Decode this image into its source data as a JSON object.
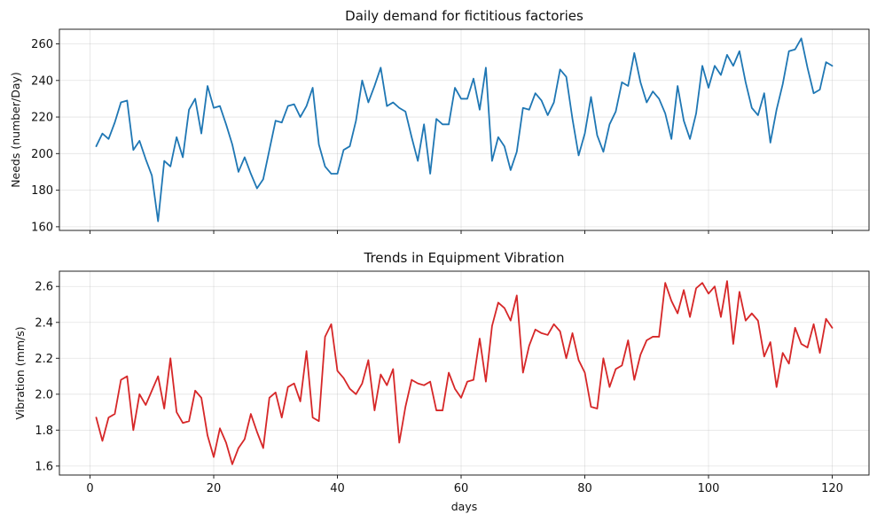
{
  "chart_data": [
    {
      "type": "line",
      "title": "Daily demand for fictitious factories",
      "xlabel": "",
      "ylabel": "Needs (number/Day)",
      "xlim": [
        -4.95,
        125.95
      ],
      "ylim": [
        158,
        268
      ],
      "xticks": [
        0,
        20,
        40,
        60,
        80,
        100,
        120
      ],
      "show_xtick_labels": false,
      "yticks": [
        160,
        180,
        200,
        220,
        240,
        260
      ],
      "grid": true,
      "color": "#1f77b4",
      "x_start": 1,
      "values": [
        204,
        211,
        208,
        217,
        228,
        229,
        202,
        207,
        197,
        188,
        163,
        196,
        193,
        209,
        198,
        224,
        230,
        211,
        237,
        225,
        226,
        216,
        205,
        190,
        198,
        189,
        181,
        186,
        202,
        218,
        217,
        226,
        227,
        220,
        226,
        236,
        205,
        193,
        189,
        189,
        202,
        204,
        218,
        240,
        228,
        237,
        247,
        226,
        228,
        225,
        223,
        209,
        196,
        216,
        189,
        219,
        216,
        216,
        236,
        230,
        230,
        241,
        224,
        247,
        196,
        209,
        204,
        191,
        201,
        225,
        224,
        233,
        229,
        221,
        228,
        246,
        242,
        219,
        199,
        211,
        231,
        210,
        201,
        216,
        223,
        239,
        237,
        255,
        239,
        228,
        234,
        230,
        222,
        208,
        237,
        218,
        208,
        222,
        248,
        236,
        248,
        243,
        254,
        248,
        256,
        239,
        225,
        221,
        233,
        206,
        224,
        238,
        256,
        257,
        263,
        247,
        233,
        235,
        250,
        248
      ]
    },
    {
      "type": "line",
      "title": "Trends in Equipment Vibration",
      "xlabel": "days",
      "ylabel": "Vibration (mm/s)",
      "xlim": [
        -4.95,
        125.95
      ],
      "ylim": [
        1.55,
        2.685
      ],
      "xticks": [
        0,
        20,
        40,
        60,
        80,
        100,
        120
      ],
      "show_xtick_labels": true,
      "yticks": [
        1.6,
        1.8,
        2.0,
        2.2,
        2.4,
        2.6
      ],
      "grid": true,
      "color": "#d62728",
      "x_start": 1,
      "values": [
        1.87,
        1.74,
        1.87,
        1.89,
        2.08,
        2.1,
        1.8,
        2.0,
        1.94,
        2.02,
        2.1,
        1.92,
        2.2,
        1.9,
        1.84,
        1.85,
        2.02,
        1.98,
        1.77,
        1.65,
        1.81,
        1.73,
        1.61,
        1.7,
        1.75,
        1.89,
        1.79,
        1.7,
        1.98,
        2.01,
        1.87,
        2.04,
        2.06,
        1.96,
        2.24,
        1.87,
        1.85,
        2.32,
        2.39,
        2.13,
        2.09,
        2.03,
        2.0,
        2.06,
        2.19,
        1.91,
        2.11,
        2.05,
        2.14,
        1.73,
        1.93,
        2.08,
        2.06,
        2.05,
        2.07,
        1.91,
        1.91,
        2.12,
        2.03,
        1.98,
        2.07,
        2.08,
        2.31,
        2.07,
        2.38,
        2.51,
        2.48,
        2.41,
        2.55,
        2.12,
        2.27,
        2.36,
        2.34,
        2.33,
        2.39,
        2.35,
        2.2,
        2.34,
        2.19,
        2.12,
        1.93,
        1.92,
        2.2,
        2.04,
        2.14,
        2.16,
        2.3,
        2.08,
        2.22,
        2.3,
        2.32,
        2.32,
        2.62,
        2.52,
        2.45,
        2.58,
        2.43,
        2.59,
        2.62,
        2.56,
        2.6,
        2.43,
        2.63,
        2.28,
        2.57,
        2.41,
        2.45,
        2.41,
        2.21,
        2.29,
        2.04,
        2.23,
        2.17,
        2.37,
        2.28,
        2.26,
        2.39,
        2.23,
        2.42,
        2.37
      ]
    }
  ]
}
